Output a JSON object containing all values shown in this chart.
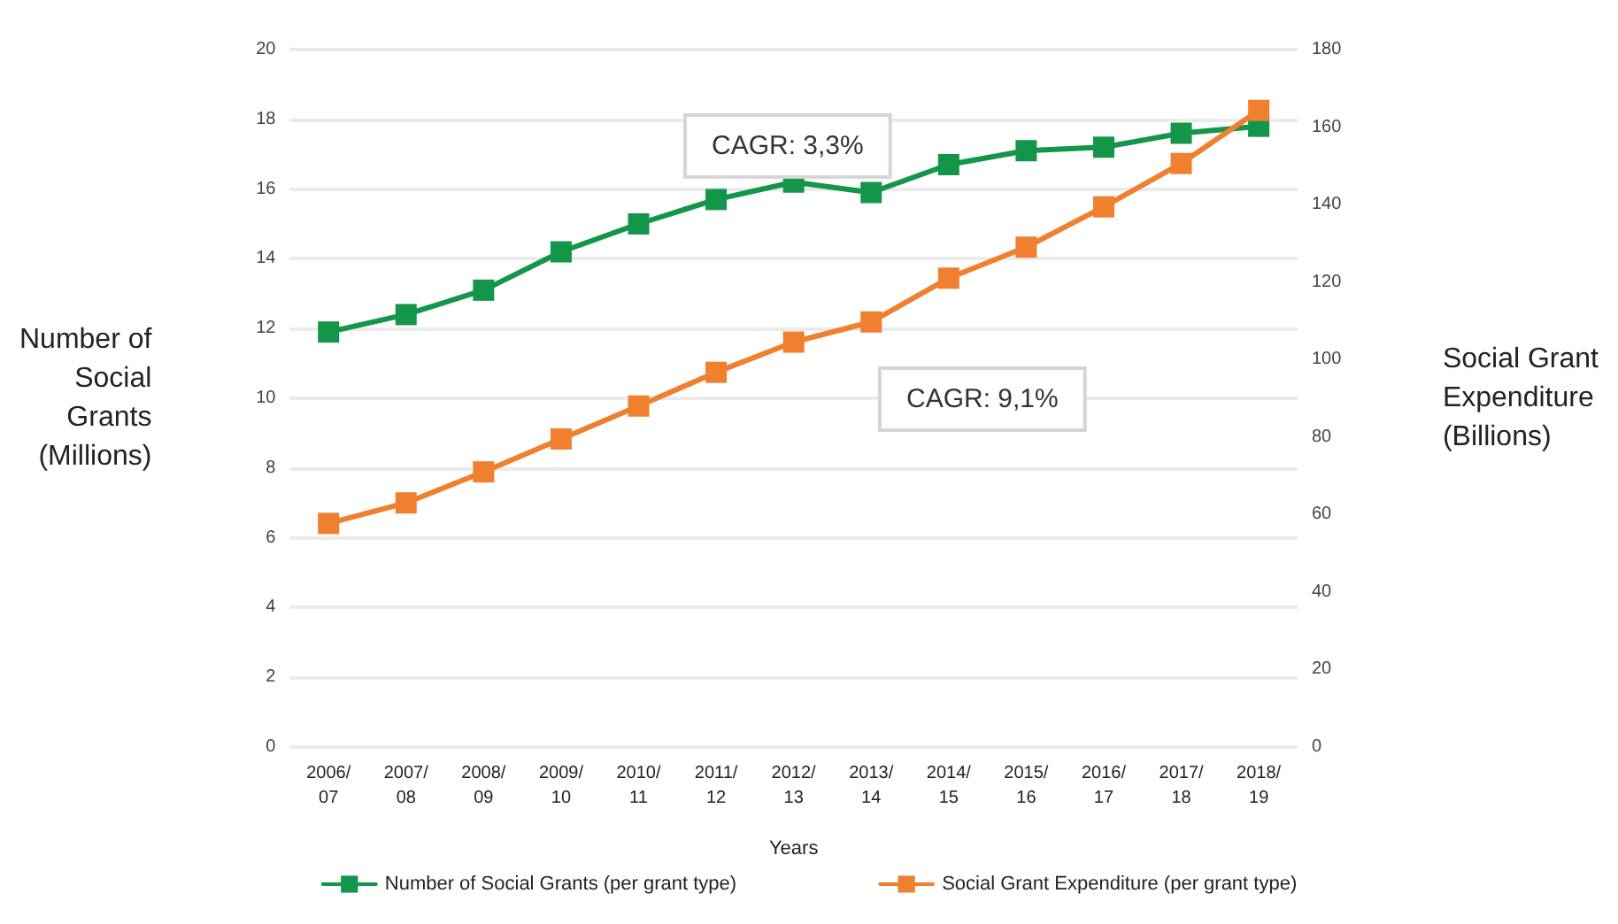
{
  "chart_data": {
    "type": "line",
    "xlabel": "Years",
    "ylabel": "Number of\nSocial\nGrants\n(Millions)",
    "y2label": "Social Grant\nExpenditure\n(Billions)",
    "categories": [
      "2006/\n07",
      "2007/\n08",
      "2008/\n09",
      "2009/\n10",
      "2010/\n11",
      "2011/\n12",
      "2012/\n13",
      "2013/\n14",
      "2014/\n15",
      "2015/\n16",
      "2016/\n17",
      "2017/\n18",
      "2018/\n19"
    ],
    "series": [
      {
        "name": "Number of Social Grants (per grant type)",
        "color": "#14964a",
        "values": [
          11.9,
          12.4,
          13.1,
          14.2,
          15.0,
          15.7,
          16.2,
          15.9,
          16.7,
          17.1,
          17.2,
          17.6,
          17.8
        ]
      },
      {
        "name": "Social Grant Expenditure (per grant type)",
        "color": "#f07f2f",
        "axis": "y2",
        "values": [
          57.7,
          63,
          71,
          79.5,
          88,
          96.7,
          104.5,
          109.7,
          121,
          129,
          139.4,
          150.6,
          164.3
        ]
      }
    ],
    "ylim": [
      0,
      20
    ],
    "yticks": [
      0,
      2,
      4,
      6,
      8,
      10,
      12,
      14,
      16,
      18,
      20
    ],
    "y2lim": [
      0,
      180
    ],
    "y2ticks": [
      0,
      20,
      40,
      60,
      80,
      100,
      120,
      140,
      160,
      180
    ],
    "grid": "y",
    "legend": "bottom",
    "marker": "square",
    "line_style": "solid",
    "annotations": [
      "CAGR: 3,3%",
      "CAGR: 9,1%"
    ]
  }
}
